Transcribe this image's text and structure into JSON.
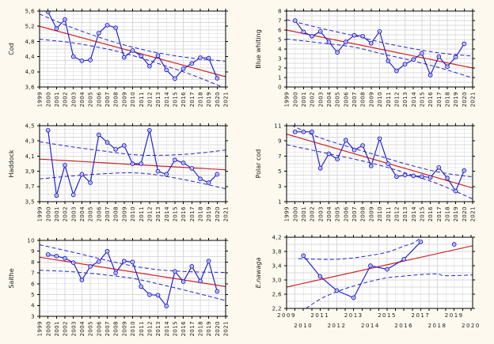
{
  "colors": {
    "series": "#2222cc",
    "trend": "#cc2222",
    "ci": "#2222cc",
    "grid": "#d9d9d9",
    "frame": "#000000",
    "text": "#1a1a1a",
    "plot_bg": "#ffffff",
    "page_bg": "#fdf9ee"
  },
  "chart_data": [
    {
      "type": "line",
      "ylabel": "Cod",
      "italic": false,
      "xlim": [
        1999,
        2021
      ],
      "ylim": [
        3.6,
        5.6
      ],
      "y_minor_step": 0.1,
      "x_grid_step": 1,
      "xtick_label_mode": "vertical",
      "xtick_labels": [
        "1999",
        "2000",
        "2001",
        "2002",
        "2003",
        "2004",
        "2005",
        "2006",
        "2007",
        "2008",
        "2009",
        "2010",
        "2011",
        "2012",
        "2013",
        "2014",
        "2015",
        "2016",
        "2017",
        "2018",
        "2019",
        "2020",
        "2021"
      ],
      "yticks": [
        3.6,
        4.0,
        4.4,
        4.8,
        5.2,
        5.6
      ],
      "ytick_labels": [
        "3,6",
        "4,0",
        "4,4",
        "4,8",
        "5,2",
        "5,6"
      ],
      "points": [
        [
          2000,
          5.58
        ],
        [
          2001,
          5.14
        ],
        [
          2002,
          5.38
        ],
        [
          2003,
          4.4
        ],
        [
          2004,
          4.29
        ],
        [
          2005,
          4.31
        ],
        [
          2006,
          5.02
        ],
        [
          2007,
          5.23
        ],
        [
          2008,
          5.16
        ],
        [
          2009,
          4.38
        ],
        [
          2010,
          4.56
        ],
        [
          2011,
          4.42
        ],
        [
          2012,
          4.15
        ],
        [
          2013,
          4.43
        ],
        [
          2014,
          4.05
        ],
        [
          2015,
          3.82
        ],
        [
          2016,
          4.08
        ],
        [
          2017,
          4.22
        ],
        [
          2018,
          4.37
        ],
        [
          2019,
          4.36
        ],
        [
          2020,
          3.83
        ]
      ],
      "trend": {
        "x": [
          1999,
          2021
        ],
        "y": [
          5.2,
          3.87
        ]
      },
      "ci_upper": [
        [
          1999,
          5.52
        ],
        [
          2003,
          5.15
        ],
        [
          2007,
          4.84
        ],
        [
          2010,
          4.65
        ],
        [
          2013,
          4.5
        ],
        [
          2017,
          4.36
        ],
        [
          2021,
          4.28
        ]
      ],
      "ci_lower": [
        [
          1999,
          4.86
        ],
        [
          2003,
          4.76
        ],
        [
          2007,
          4.6
        ],
        [
          2010,
          4.43
        ],
        [
          2013,
          4.22
        ],
        [
          2017,
          3.92
        ],
        [
          2021,
          3.56
        ]
      ]
    },
    {
      "type": "line",
      "ylabel": "Blue whiting",
      "italic": false,
      "xlim": [
        1999,
        2021
      ],
      "ylim": [
        0,
        8
      ],
      "y_minor_step": 0.5,
      "x_grid_step": 1,
      "xtick_label_mode": "vertical",
      "xtick_labels": [
        "1999",
        "2000",
        "2001",
        "2002",
        "2003",
        "2004",
        "2005",
        "2006",
        "2007",
        "2008",
        "2009",
        "2010",
        "2011",
        "2012",
        "2013",
        "2014",
        "2015",
        "2016",
        "2017",
        "2018",
        "2019",
        "2020",
        "2021"
      ],
      "yticks": [
        0,
        1,
        2,
        3,
        4,
        5,
        6,
        7,
        8
      ],
      "ytick_labels": [
        "0",
        "1",
        "2",
        "3",
        "4",
        "5",
        "6",
        "7",
        "8"
      ],
      "points": [
        [
          2000,
          7.0
        ],
        [
          2001,
          5.8
        ],
        [
          2002,
          5.35
        ],
        [
          2003,
          5.85
        ],
        [
          2004,
          4.75
        ],
        [
          2005,
          3.65
        ],
        [
          2006,
          4.75
        ],
        [
          2007,
          5.45
        ],
        [
          2008,
          5.35
        ],
        [
          2009,
          4.6
        ],
        [
          2010,
          5.85
        ],
        [
          2011,
          2.75
        ],
        [
          2012,
          1.7
        ],
        [
          2013,
          2.4
        ],
        [
          2014,
          2.9
        ],
        [
          2015,
          3.55
        ],
        [
          2016,
          1.25
        ],
        [
          2017,
          3.2
        ],
        [
          2018,
          2.15
        ],
        [
          2019,
          3.15
        ],
        [
          2020,
          4.55
        ]
      ],
      "trend": {
        "x": [
          1999,
          2021
        ],
        "y": [
          6.0,
          2.0
        ]
      },
      "ci_upper": [
        [
          1999,
          7.1
        ],
        [
          2003,
          6.2
        ],
        [
          2007,
          5.4
        ],
        [
          2010,
          4.75
        ],
        [
          2013,
          4.2
        ],
        [
          2017,
          3.6
        ],
        [
          2021,
          3.25
        ]
      ],
      "ci_lower": [
        [
          1999,
          5.05
        ],
        [
          2003,
          4.65
        ],
        [
          2007,
          4.2
        ],
        [
          2010,
          3.55
        ],
        [
          2013,
          2.95
        ],
        [
          2017,
          2.05
        ],
        [
          2021,
          0.95
        ]
      ]
    },
    {
      "type": "line",
      "ylabel": "Haddock",
      "italic": false,
      "xlim": [
        1999,
        2021
      ],
      "ylim": [
        3.5,
        4.5
      ],
      "y_minor_step": 0.05,
      "x_grid_step": 1,
      "xtick_label_mode": "vertical",
      "xtick_labels": [
        "1999",
        "2000",
        "2001",
        "2002",
        "2003",
        "2004",
        "2005",
        "2006",
        "2007",
        "2008",
        "2009",
        "2010",
        "2011",
        "2012",
        "2013",
        "2014",
        "2015",
        "2016",
        "2017",
        "2018",
        "2019",
        "2020",
        "2021"
      ],
      "yticks": [
        3.5,
        3.7,
        3.9,
        4.1,
        4.3,
        4.5
      ],
      "ytick_labels": [
        "3,5",
        "3,7",
        "3,9",
        "4,1",
        "4,3",
        "4,5"
      ],
      "points": [
        [
          2000,
          4.44
        ],
        [
          2001,
          3.58
        ],
        [
          2002,
          3.98
        ],
        [
          2003,
          3.59
        ],
        [
          2004,
          3.86
        ],
        [
          2005,
          3.75
        ],
        [
          2006,
          4.38
        ],
        [
          2007,
          4.28
        ],
        [
          2008,
          4.19
        ],
        [
          2009,
          4.24
        ],
        [
          2010,
          4.0
        ],
        [
          2011,
          4.0
        ],
        [
          2012,
          4.44
        ],
        [
          2013,
          3.9
        ],
        [
          2014,
          3.86
        ],
        [
          2015,
          4.05
        ],
        [
          2016,
          4.01
        ],
        [
          2017,
          3.94
        ],
        [
          2018,
          3.8
        ],
        [
          2019,
          3.75
        ],
        [
          2020,
          3.86
        ]
      ],
      "trend": {
        "x": [
          1999,
          2021
        ],
        "y": [
          4.06,
          3.92
        ]
      },
      "ci_upper": [
        [
          1999,
          4.29
        ],
        [
          2003,
          4.22
        ],
        [
          2007,
          4.16
        ],
        [
          2010,
          4.12
        ],
        [
          2013,
          4.11
        ],
        [
          2017,
          4.13
        ],
        [
          2021,
          4.18
        ]
      ],
      "ci_lower": [
        [
          1999,
          3.8
        ],
        [
          2003,
          3.84
        ],
        [
          2007,
          3.87
        ],
        [
          2010,
          3.88
        ],
        [
          2013,
          3.85
        ],
        [
          2017,
          3.77
        ],
        [
          2021,
          3.67
        ]
      ]
    },
    {
      "type": "line",
      "ylabel": "Polar cod",
      "italic": false,
      "xlim": [
        1999,
        2021
      ],
      "ylim": [
        1,
        11
      ],
      "y_minor_step": 0.5,
      "x_grid_step": 1,
      "xtick_label_mode": "vertical",
      "xtick_labels": [
        "1999",
        "2000",
        "2001",
        "2002",
        "2003",
        "2004",
        "2005",
        "2006",
        "2007",
        "2008",
        "2009",
        "2010",
        "2011",
        "2012",
        "2013",
        "2014",
        "2015",
        "2016",
        "2017",
        "2018",
        "2019",
        "2020",
        "2021"
      ],
      "yticks": [
        1,
        3,
        5,
        7,
        9,
        11
      ],
      "ytick_labels": [
        "1",
        "3",
        "5",
        "7",
        "9",
        "11"
      ],
      "points": [
        [
          2000,
          10.2
        ],
        [
          2001,
          10.2
        ],
        [
          2002,
          10.2
        ],
        [
          2003,
          5.4
        ],
        [
          2004,
          7.3
        ],
        [
          2005,
          6.6
        ],
        [
          2006,
          9.1
        ],
        [
          2007,
          7.8
        ],
        [
          2008,
          8.4
        ],
        [
          2009,
          5.7
        ],
        [
          2010,
          9.3
        ],
        [
          2011,
          6.0
        ],
        [
          2012,
          4.3
        ],
        [
          2013,
          4.5
        ],
        [
          2014,
          4.4
        ],
        [
          2015,
          4.3
        ],
        [
          2016,
          4.2
        ],
        [
          2017,
          5.5
        ],
        [
          2018,
          4.1
        ],
        [
          2019,
          2.4
        ],
        [
          2020,
          5.1
        ]
      ],
      "trend": {
        "x": [
          1999,
          2021
        ],
        "y": [
          9.9,
          2.8
        ]
      },
      "ci_upper": [
        [
          1999.6,
          11.05
        ],
        [
          2003,
          9.4
        ],
        [
          2007,
          8.0
        ],
        [
          2010,
          7.0
        ],
        [
          2013,
          6.0
        ],
        [
          2017,
          4.9
        ],
        [
          2021,
          4.25
        ]
      ],
      "ci_lower": [
        [
          1999,
          8.5
        ],
        [
          2003,
          7.55
        ],
        [
          2007,
          6.6
        ],
        [
          2010,
          5.8
        ],
        [
          2013,
          4.8
        ],
        [
          2017,
          3.3
        ],
        [
          2021,
          1.35
        ]
      ]
    },
    {
      "type": "line",
      "ylabel": "Saithe",
      "italic": false,
      "xlim": [
        1999,
        2021
      ],
      "ylim": [
        3,
        10
      ],
      "y_minor_step": 0.5,
      "x_grid_step": 1,
      "xtick_label_mode": "vertical",
      "xtick_labels": [
        "1999",
        "2000",
        "2001",
        "2002",
        "2003",
        "2004",
        "2005",
        "2006",
        "2007",
        "2008",
        "2009",
        "2010",
        "2011",
        "2012",
        "2013",
        "2014",
        "2015",
        "2016",
        "2017",
        "2018",
        "2019",
        "2020",
        "2021"
      ],
      "yticks": [
        3,
        4,
        5,
        6,
        7,
        8,
        9,
        10
      ],
      "ytick_labels": [
        "3",
        "4",
        "5",
        "6",
        "7",
        "8",
        "9",
        "10"
      ],
      "points": [
        [
          2000,
          8.7
        ],
        [
          2001,
          8.55
        ],
        [
          2002,
          8.35
        ],
        [
          2003,
          7.95
        ],
        [
          2004,
          6.35
        ],
        [
          2005,
          7.6
        ],
        [
          2006,
          8.05
        ],
        [
          2007,
          9.0
        ],
        [
          2008,
          7.0
        ],
        [
          2009,
          8.1
        ],
        [
          2010,
          8.0
        ],
        [
          2011,
          5.75
        ],
        [
          2012,
          5.0
        ],
        [
          2013,
          4.95
        ],
        [
          2014,
          3.95
        ],
        [
          2015,
          7.15
        ],
        [
          2016,
          6.2
        ],
        [
          2017,
          7.6
        ],
        [
          2018,
          6.25
        ],
        [
          2019,
          8.1
        ],
        [
          2020,
          5.3
        ]
      ],
      "trend": {
        "x": [
          1999,
          2021
        ],
        "y": [
          8.45,
          5.74
        ]
      },
      "ci_upper": [
        [
          1999,
          9.6
        ],
        [
          2003,
          8.9
        ],
        [
          2007,
          8.15
        ],
        [
          2010,
          7.65
        ],
        [
          2013,
          7.3
        ],
        [
          2017,
          7.1
        ],
        [
          2021,
          7.05
        ]
      ],
      "ci_lower": [
        [
          1999,
          7.25
        ],
        [
          2003,
          7.1
        ],
        [
          2007,
          6.8
        ],
        [
          2010,
          6.5
        ],
        [
          2013,
          6.0
        ],
        [
          2017,
          5.25
        ],
        [
          2021,
          4.45
        ]
      ]
    },
    {
      "type": "line",
      "ylabel": "E.nawaga",
      "italic": true,
      "xlim": [
        2009,
        2020.1
      ],
      "ylim": [
        2.2,
        4.2
      ],
      "y_minor_step": 0.2,
      "x_grid_step": 0.5,
      "xtick_label_mode": "staggered",
      "xticks": [
        {
          "v": 2009,
          "label": "2009",
          "row": 0
        },
        {
          "v": 2010,
          "label": "2010",
          "row": 1
        },
        {
          "v": 2011,
          "label": "2011",
          "row": 0
        },
        {
          "v": 2012,
          "label": "2012",
          "row": 1
        },
        {
          "v": 2013,
          "label": "2013",
          "row": 0
        },
        {
          "v": 2014,
          "label": "2014",
          "row": 1
        },
        {
          "v": 2015,
          "label": "2015",
          "row": 0
        },
        {
          "v": 2016,
          "label": "2016",
          "row": 1
        },
        {
          "v": 2017,
          "label": "2017",
          "row": 0
        },
        {
          "v": 2018,
          "label": "2018",
          "row": 1
        },
        {
          "v": 2019,
          "label": "2019",
          "row": 0
        },
        {
          "v": 2020,
          "label": "2020",
          "row": 1
        }
      ],
      "yticks": [
        2.2,
        2.6,
        3.0,
        3.4,
        3.8,
        4.2
      ],
      "ytick_labels": [
        "2,2",
        "2,6",
        "3,0",
        "3,4",
        "3,8",
        "4,2"
      ],
      "points": [
        [
          2010,
          3.68
        ],
        [
          2011,
          3.1
        ],
        [
          2012,
          2.7
        ],
        [
          2013,
          2.5
        ],
        [
          2014,
          3.4
        ],
        [
          2015,
          3.3
        ],
        [
          2016,
          3.58
        ],
        [
          2017,
          4.07
        ],
        [
          2019,
          4.0
        ]
      ],
      "trend": {
        "x": [
          2009,
          2020.1
        ],
        "y": [
          2.8,
          3.96
        ]
      },
      "ci_upper": [
        [
          2009.7,
          3.6
        ],
        [
          2011,
          3.58
        ],
        [
          2012,
          3.58
        ],
        [
          2013,
          3.62
        ],
        [
          2014,
          3.69
        ],
        [
          2015,
          3.78
        ],
        [
          2016,
          3.95
        ],
        [
          2016.6,
          4.05
        ],
        [
          2017.15,
          4.25
        ]
      ],
      "ci_lower": [
        [
          2009.85,
          2.1
        ],
        [
          2011,
          2.46
        ],
        [
          2012,
          2.67
        ],
        [
          2013,
          2.83
        ],
        [
          2014,
          2.96
        ],
        [
          2015,
          3.06
        ],
        [
          2016,
          3.11
        ],
        [
          2017,
          3.15
        ],
        [
          2018,
          3.17
        ],
        [
          2018.45,
          3.12
        ],
        [
          2020.1,
          3.14
        ]
      ]
    }
  ]
}
